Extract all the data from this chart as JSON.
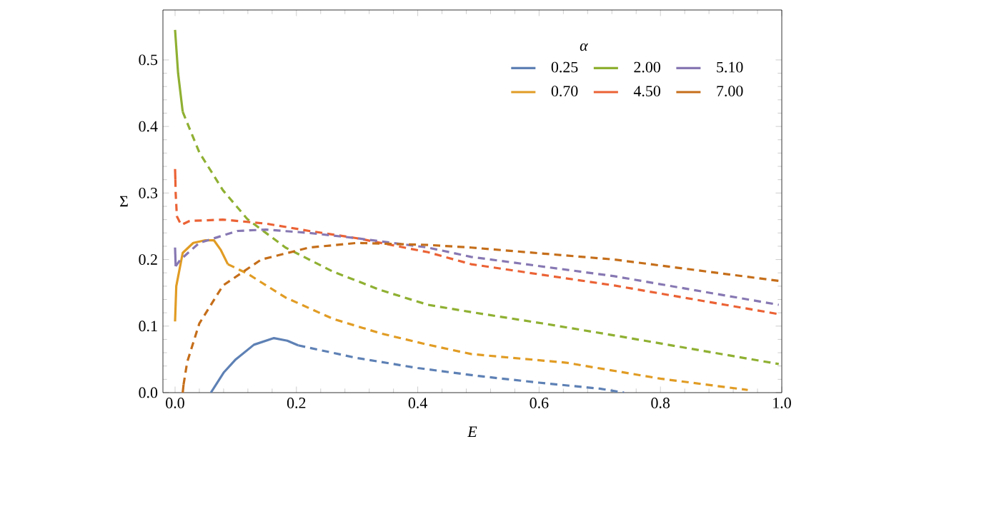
{
  "chart_data": {
    "type": "line",
    "xlabel": "E",
    "ylabel": "Σ",
    "legend_title": "α",
    "legend": "top right",
    "grid": false,
    "marker": "none",
    "xlim": [
      -0.02,
      1.0
    ],
    "ylim": [
      0,
      0.575
    ],
    "xticks": [
      {
        "value": 0,
        "label": "0.0"
      },
      {
        "value": 0.2,
        "label": "0.2"
      },
      {
        "value": 0.4,
        "label": "0.4"
      },
      {
        "value": 0.6,
        "label": "0.6"
      },
      {
        "value": 0.8,
        "label": "0.8"
      },
      {
        "value": 1.0,
        "label": "1.0"
      }
    ],
    "yticks": [
      {
        "value": 0,
        "label": "0.0"
      },
      {
        "value": 0.1,
        "label": "0.1"
      },
      {
        "value": 0.2,
        "label": "0.2"
      },
      {
        "value": 0.3,
        "label": "0.3"
      },
      {
        "value": 0.4,
        "label": "0.4"
      },
      {
        "value": 0.5,
        "label": "0.5"
      }
    ],
    "series": [
      {
        "name": "0.25",
        "color": "#5e81b5",
        "line_style": "solid",
        "x": [
          0.059,
          0.08,
          0.1,
          0.13,
          0.163,
          0.185,
          0.203
        ],
        "values": [
          0,
          0.03,
          0.05,
          0.072,
          0.082,
          0.078,
          0.071
        ]
      },
      {
        "name": "0.70",
        "color": "#e19c24",
        "line_style": "solid",
        "x": [
          0,
          0.002,
          0.0126,
          0.03,
          0.05,
          0.064,
          0.075,
          0.087
        ],
        "values": [
          0.107,
          0.16,
          0.21,
          0.225,
          0.229,
          0.229,
          0.215,
          0.193
        ]
      },
      {
        "name": "2.00",
        "color": "#8fb032",
        "line_style": "solid",
        "x": [
          0,
          0.005,
          0.0126
        ],
        "values": [
          0.545,
          0.48,
          0.422
        ]
      },
      {
        "name": "4.50",
        "color": "#eb6235",
        "line_style": "solid",
        "x": [
          0,
          0.0005
        ],
        "values": [
          0.336,
          0.32
        ]
      },
      {
        "name": "5.10",
        "color": "#8778b3",
        "line_style": "solid",
        "x": [
          0,
          0.001
        ],
        "values": [
          0.218,
          0.19
        ]
      },
      {
        "name": "7.00",
        "color": "#c56e1a",
        "line_style": "solid",
        "x": [
          0.0126,
          0.014
        ],
        "values": [
          0,
          0.012
        ]
      },
      {
        "color": "#5e81b5",
        "line_style": "dashed",
        "x": [
          0.203,
          0.3,
          0.4,
          0.5,
          0.6,
          0.7,
          0.74
        ],
        "values": [
          0.071,
          0.052,
          0.037,
          0.025,
          0.015,
          0.006,
          0.0
        ]
      },
      {
        "color": "#e19c24",
        "line_style": "dashed",
        "x": [
          0.087,
          0.119,
          0.182,
          0.26,
          0.339,
          0.417,
          0.488,
          0.535,
          0.645,
          0.8,
          0.944
        ],
        "values": [
          0.193,
          0.179,
          0.143,
          0.111,
          0.089,
          0.072,
          0.058,
          0.054,
          0.045,
          0.021,
          0.004
        ]
      },
      {
        "color": "#8fb032",
        "line_style": "dashed",
        "x": [
          0.0126,
          0.04,
          0.079,
          0.119,
          0.182,
          0.26,
          0.339,
          0.417,
          0.488,
          0.606,
          0.724,
          0.995
        ],
        "values": [
          0.422,
          0.361,
          0.304,
          0.261,
          0.218,
          0.182,
          0.154,
          0.132,
          0.121,
          0.104,
          0.086,
          0.043
        ]
      },
      {
        "color": "#eb6235",
        "line_style": "dashed",
        "x": [
          0.0005,
          0.001,
          0.003,
          0.01,
          0.024,
          0.079,
          0.15,
          0.221,
          0.3,
          0.417,
          0.488,
          0.724,
          0.995
        ],
        "values": [
          0.32,
          0.3,
          0.265,
          0.252,
          0.258,
          0.26,
          0.254,
          0.243,
          0.232,
          0.211,
          0.193,
          0.161,
          0.118
        ]
      },
      {
        "color": "#8778b3",
        "line_style": "dashed",
        "x": [
          0.001,
          0.009,
          0.04,
          0.103,
          0.15,
          0.221,
          0.3,
          0.417,
          0.488,
          0.724,
          0.995
        ],
        "values": [
          0.19,
          0.2,
          0.225,
          0.243,
          0.245,
          0.24,
          0.232,
          0.218,
          0.204,
          0.175,
          0.132
        ]
      },
      {
        "color": "#c56e1a",
        "line_style": "dashed",
        "x": [
          0.014,
          0.02,
          0.04,
          0.079,
          0.142,
          0.221,
          0.3,
          0.417,
          0.488,
          0.724,
          0.995
        ],
        "values": [
          0.012,
          0.046,
          0.104,
          0.161,
          0.2,
          0.218,
          0.225,
          0.222,
          0.218,
          0.2,
          0.168
        ]
      }
    ]
  }
}
